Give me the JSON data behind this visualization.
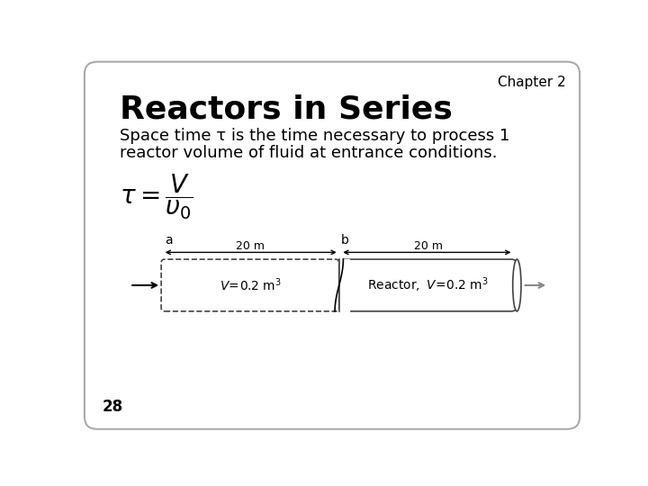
{
  "chapter_label": "Chapter 2",
  "title": "Reactors in Series",
  "body_text_line1": "Space time τ is the time necessary to process 1",
  "body_text_line2": "reactor volume of fluid at entrance conditions.",
  "page_number": "28",
  "background_color": "#ffffff",
  "border_color": "#aaaaaa",
  "title_fontsize": 26,
  "body_fontsize": 13,
  "chapter_fontsize": 11,
  "page_num_fontsize": 12,
  "reactor_diagram": {
    "label_a": "a",
    "label_b": "b",
    "dim1": "20 m",
    "dim2": "20 m",
    "text1": "V=0.2 m$^3$",
    "text2": "Reactor,  V=0.2 m$^3$"
  }
}
